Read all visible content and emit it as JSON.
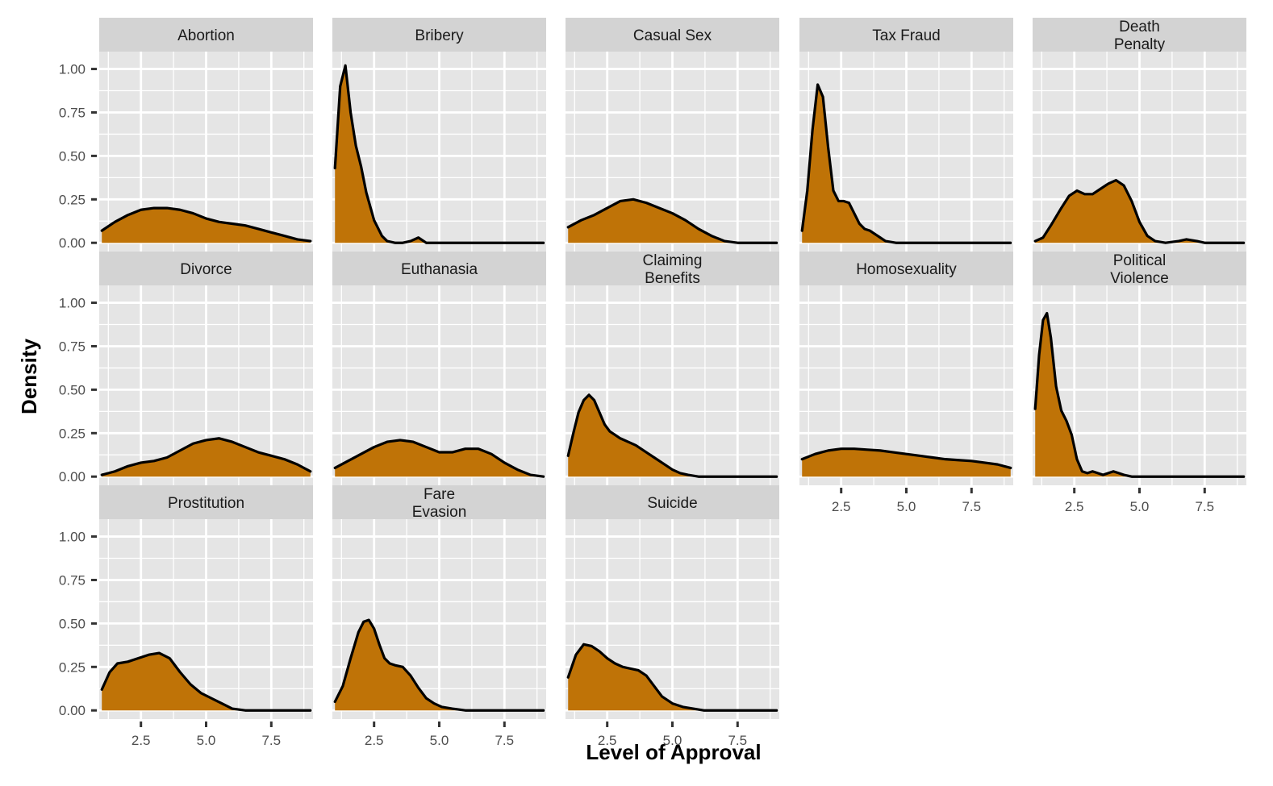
{
  "chart_data": {
    "type": "area",
    "xlabel": "Level of Approval",
    "ylabel": "Density",
    "xlim": [
      0.9,
      9.1
    ],
    "ylim": [
      -0.05,
      1.1
    ],
    "x_ticks": [
      2.5,
      5.0,
      7.5
    ],
    "x_tick_labels": [
      "2.5",
      "5.0",
      "7.5"
    ],
    "y_ticks": [
      0,
      0.25,
      0.5,
      0.75,
      1.0
    ],
    "y_tick_labels": [
      "0.00",
      "0.25",
      "0.50",
      "0.75",
      "1.00"
    ],
    "grid": true,
    "fill_color": "#BF7307",
    "line_color": "#000000",
    "panel_bg": "#E5E5E5",
    "strip_bg": "#D3D3D3",
    "facets": [
      {
        "label": "Abortion",
        "x": [
          1.0,
          1.5,
          2.0,
          2.5,
          3.0,
          3.5,
          4.0,
          4.5,
          5.0,
          5.5,
          6.0,
          6.5,
          7.0,
          7.5,
          8.0,
          8.5,
          9.0
        ],
        "y": [
          0.07,
          0.12,
          0.16,
          0.19,
          0.2,
          0.2,
          0.19,
          0.17,
          0.14,
          0.12,
          0.11,
          0.1,
          0.08,
          0.06,
          0.04,
          0.02,
          0.01
        ]
      },
      {
        "label": "Bribery",
        "x": [
          1.0,
          1.2,
          1.4,
          1.6,
          1.8,
          2.0,
          2.2,
          2.5,
          2.8,
          3.0,
          3.3,
          3.6,
          3.9,
          4.2,
          4.5,
          5.0,
          6.0,
          7.0,
          8.0,
          9.0
        ],
        "y": [
          0.43,
          0.9,
          1.02,
          0.75,
          0.56,
          0.44,
          0.29,
          0.13,
          0.04,
          0.01,
          0.0,
          0.0,
          0.01,
          0.03,
          0.0,
          0.0,
          0.0,
          0.0,
          0.0,
          0.0
        ]
      },
      {
        "label": "Casual Sex",
        "x": [
          1.0,
          1.5,
          2.0,
          2.5,
          3.0,
          3.5,
          4.0,
          4.5,
          5.0,
          5.5,
          6.0,
          6.5,
          7.0,
          7.5,
          8.0,
          8.5,
          9.0
        ],
        "y": [
          0.09,
          0.13,
          0.16,
          0.2,
          0.24,
          0.25,
          0.23,
          0.2,
          0.17,
          0.13,
          0.08,
          0.04,
          0.01,
          0.0,
          0.0,
          0.0,
          0.0
        ]
      },
      {
        "label": "Tax Fraud",
        "x": [
          1.0,
          1.2,
          1.4,
          1.6,
          1.8,
          2.0,
          2.2,
          2.4,
          2.6,
          2.8,
          3.0,
          3.2,
          3.4,
          3.6,
          3.8,
          4.0,
          4.2,
          4.6,
          5.0,
          6.0,
          7.0,
          8.0,
          9.0
        ],
        "y": [
          0.07,
          0.3,
          0.65,
          0.91,
          0.84,
          0.55,
          0.3,
          0.24,
          0.24,
          0.23,
          0.17,
          0.11,
          0.08,
          0.07,
          0.05,
          0.03,
          0.01,
          0.0,
          0.0,
          0.0,
          0.0,
          0.0,
          0.0
        ]
      },
      {
        "label": "Death\nPenalty",
        "x": [
          1.0,
          1.3,
          1.6,
          2.0,
          2.3,
          2.6,
          2.9,
          3.2,
          3.5,
          3.8,
          4.1,
          4.4,
          4.7,
          5.0,
          5.3,
          5.6,
          6.0,
          6.5,
          6.8,
          7.2,
          7.5,
          8.0,
          9.0
        ],
        "y": [
          0.01,
          0.03,
          0.1,
          0.2,
          0.27,
          0.3,
          0.28,
          0.28,
          0.31,
          0.34,
          0.36,
          0.33,
          0.24,
          0.12,
          0.04,
          0.01,
          0.0,
          0.01,
          0.02,
          0.01,
          0.0,
          0.0,
          0.0
        ]
      },
      {
        "label": "Divorce",
        "x": [
          1.0,
          1.5,
          2.0,
          2.5,
          3.0,
          3.5,
          4.0,
          4.5,
          5.0,
          5.5,
          6.0,
          6.5,
          7.0,
          7.5,
          8.0,
          8.5,
          9.0
        ],
        "y": [
          0.01,
          0.03,
          0.06,
          0.08,
          0.09,
          0.11,
          0.15,
          0.19,
          0.21,
          0.22,
          0.2,
          0.17,
          0.14,
          0.12,
          0.1,
          0.07,
          0.03
        ]
      },
      {
        "label": "Euthanasia",
        "x": [
          1.0,
          1.5,
          2.0,
          2.5,
          3.0,
          3.5,
          4.0,
          4.5,
          5.0,
          5.5,
          6.0,
          6.5,
          7.0,
          7.5,
          8.0,
          8.5,
          9.0
        ],
        "y": [
          0.05,
          0.09,
          0.13,
          0.17,
          0.2,
          0.21,
          0.2,
          0.17,
          0.14,
          0.14,
          0.16,
          0.16,
          0.13,
          0.08,
          0.04,
          0.01,
          0.0
        ]
      },
      {
        "label": "Claiming\nBenefits",
        "x": [
          1.0,
          1.2,
          1.4,
          1.6,
          1.8,
          2.0,
          2.2,
          2.4,
          2.6,
          2.8,
          3.0,
          3.3,
          3.6,
          4.0,
          4.3,
          4.6,
          5.0,
          5.3,
          5.6,
          6.0,
          6.5,
          7.0,
          8.0,
          9.0
        ],
        "y": [
          0.12,
          0.25,
          0.37,
          0.44,
          0.47,
          0.44,
          0.37,
          0.3,
          0.26,
          0.24,
          0.22,
          0.2,
          0.18,
          0.14,
          0.11,
          0.08,
          0.04,
          0.02,
          0.01,
          0.0,
          0.0,
          0.0,
          0.0,
          0.0
        ]
      },
      {
        "label": "Homosexuality",
        "x": [
          1.0,
          1.5,
          2.0,
          2.5,
          3.0,
          3.5,
          4.0,
          4.5,
          5.0,
          5.5,
          6.0,
          6.5,
          7.0,
          7.5,
          8.0,
          8.5,
          9.0
        ],
        "y": [
          0.1,
          0.13,
          0.15,
          0.16,
          0.16,
          0.155,
          0.15,
          0.14,
          0.13,
          0.12,
          0.11,
          0.1,
          0.095,
          0.09,
          0.08,
          0.07,
          0.05
        ]
      },
      {
        "label": "Political\nViolence",
        "x": [
          1.0,
          1.15,
          1.3,
          1.45,
          1.6,
          1.8,
          2.0,
          2.2,
          2.4,
          2.6,
          2.8,
          3.0,
          3.2,
          3.4,
          3.6,
          3.8,
          4.0,
          4.2,
          4.4,
          4.7,
          5.0,
          6.0,
          7.0,
          8.0,
          9.0
        ],
        "y": [
          0.39,
          0.7,
          0.9,
          0.94,
          0.8,
          0.52,
          0.38,
          0.32,
          0.24,
          0.1,
          0.03,
          0.02,
          0.03,
          0.02,
          0.01,
          0.02,
          0.03,
          0.02,
          0.01,
          0.0,
          0.0,
          0.0,
          0.0,
          0.0,
          0.0
        ]
      },
      {
        "label": "Prostitution",
        "x": [
          1.0,
          1.3,
          1.6,
          2.0,
          2.4,
          2.8,
          3.2,
          3.6,
          4.0,
          4.4,
          4.8,
          5.2,
          5.6,
          6.0,
          6.5,
          7.0,
          8.0,
          9.0
        ],
        "y": [
          0.12,
          0.22,
          0.27,
          0.28,
          0.3,
          0.32,
          0.33,
          0.3,
          0.22,
          0.15,
          0.1,
          0.07,
          0.04,
          0.01,
          0.0,
          0.0,
          0.0,
          0.0
        ]
      },
      {
        "label": "Fare\nEvasion",
        "x": [
          1.0,
          1.3,
          1.6,
          1.9,
          2.1,
          2.3,
          2.5,
          2.7,
          2.9,
          3.1,
          3.3,
          3.6,
          3.9,
          4.2,
          4.5,
          4.8,
          5.1,
          5.5,
          6.0,
          7.0,
          8.0,
          9.0
        ],
        "y": [
          0.05,
          0.14,
          0.3,
          0.45,
          0.51,
          0.52,
          0.47,
          0.38,
          0.3,
          0.27,
          0.26,
          0.25,
          0.2,
          0.13,
          0.07,
          0.04,
          0.02,
          0.01,
          0.0,
          0.0,
          0.0,
          0.0
        ]
      },
      {
        "label": "Suicide",
        "x": [
          1.0,
          1.3,
          1.6,
          1.9,
          2.2,
          2.5,
          2.8,
          3.1,
          3.4,
          3.7,
          4.0,
          4.3,
          4.6,
          5.0,
          5.4,
          5.8,
          6.2,
          7.0,
          8.0,
          9.0
        ],
        "y": [
          0.19,
          0.32,
          0.38,
          0.37,
          0.34,
          0.3,
          0.27,
          0.25,
          0.24,
          0.23,
          0.2,
          0.14,
          0.08,
          0.04,
          0.02,
          0.01,
          0.0,
          0.0,
          0.0,
          0.0
        ]
      }
    ]
  }
}
